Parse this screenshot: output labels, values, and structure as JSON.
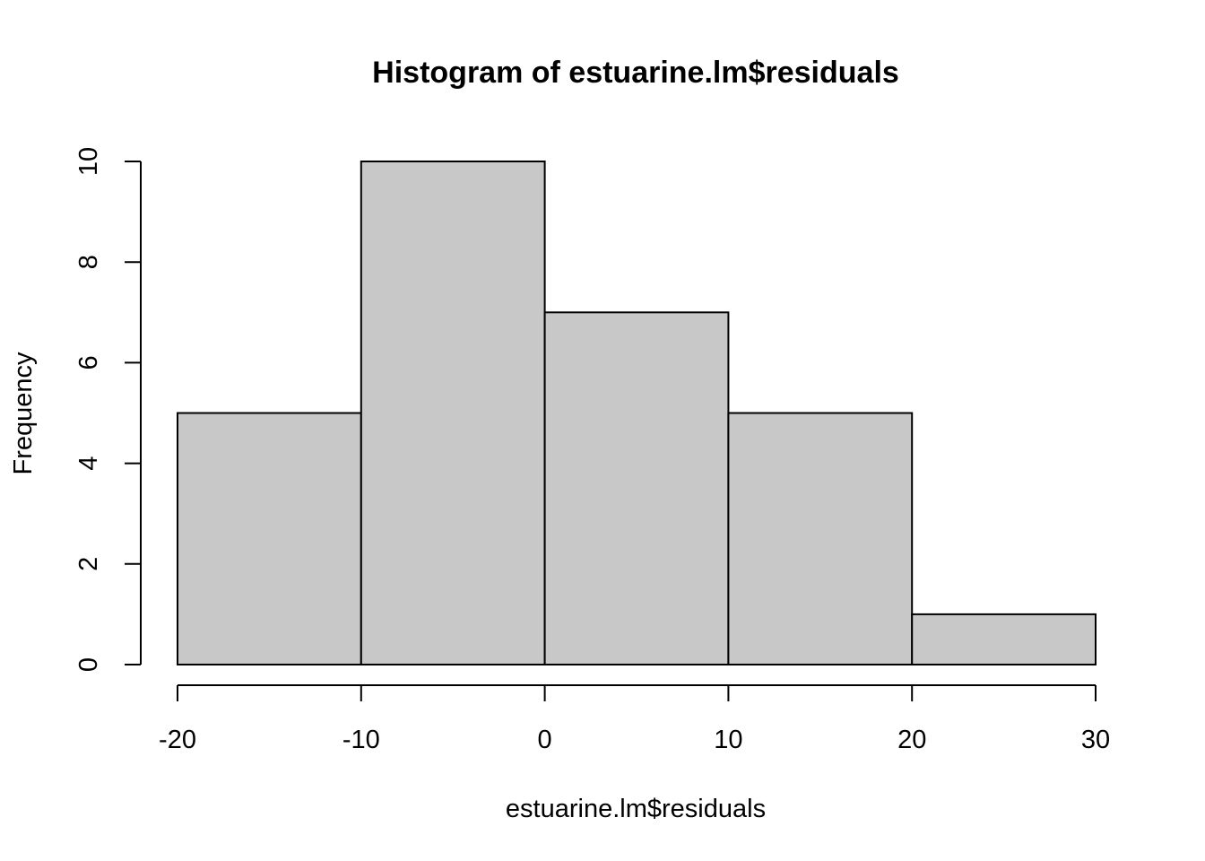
{
  "chart_data": {
    "type": "bar",
    "subtype": "histogram",
    "title": "Histogram of estuarine.lm$residuals",
    "xlabel": "estuarine.lm$residuals",
    "ylabel": "Frequency",
    "bins": [
      {
        "from": -20,
        "to": -10,
        "count": 5
      },
      {
        "from": -10,
        "to": 0,
        "count": 10
      },
      {
        "from": 0,
        "to": 10,
        "count": 7
      },
      {
        "from": 10,
        "to": 20,
        "count": 5
      },
      {
        "from": 20,
        "to": 30,
        "count": 1
      }
    ],
    "xlim": [
      -20,
      30
    ],
    "ylim": [
      0,
      10
    ],
    "x_ticks": [
      -20,
      -10,
      0,
      10,
      20,
      30
    ],
    "x_tick_labels": [
      "-20",
      "-10",
      "0",
      "10",
      "20",
      "30"
    ],
    "y_ticks": [
      0,
      2,
      4,
      6,
      8,
      10
    ],
    "y_tick_labels": [
      "0",
      "2",
      "4",
      "6",
      "8",
      "10"
    ],
    "bar_color": "#c8c8c8",
    "grid": false,
    "legend": "none"
  }
}
